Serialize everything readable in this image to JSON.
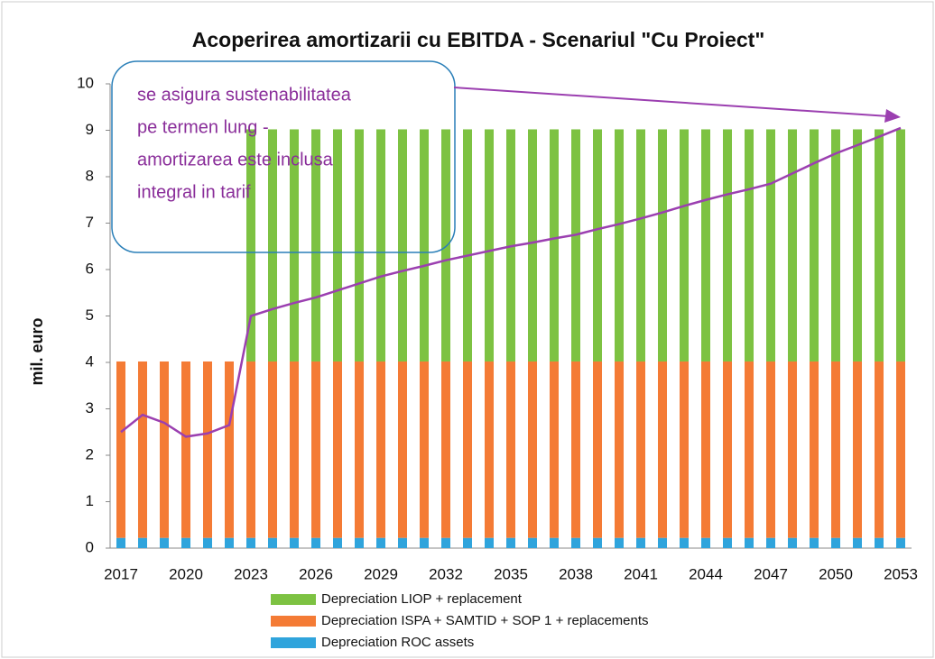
{
  "chart_data": {
    "type": "stacked_bar_line",
    "title": "Acoperirea amortizarii cu EBITDA - Scenariul \"Cu Proiect\"",
    "y_label": "mil. euro",
    "annotation": [
      "se asigura sustenabilitatea",
      "pe termen lung -",
      "amortizarea este inclusa",
      "integral in tarif"
    ],
    "categories": [
      "2017",
      null,
      null,
      "2020",
      null,
      null,
      "2023",
      null,
      null,
      "2026",
      null,
      null,
      "2029",
      null,
      null,
      "2032",
      null,
      null,
      "2035",
      null,
      null,
      "2038",
      null,
      null,
      "2041",
      null,
      null,
      "2044",
      null,
      null,
      "2047",
      null,
      null,
      "2050",
      null,
      null,
      "2053"
    ],
    "ylim": [
      0,
      10
    ],
    "yticks": [
      0,
      1,
      2,
      3,
      4,
      5,
      6,
      7,
      8,
      9,
      10
    ],
    "series": [
      {
        "name": "Depreciation ROC  assets",
        "color": "#2fa4dc",
        "values": [
          0.22,
          0.22,
          0.22,
          0.22,
          0.22,
          0.22,
          0.22,
          0.22,
          0.22,
          0.22,
          0.22,
          0.22,
          0.22,
          0.22,
          0.22,
          0.22,
          0.22,
          0.22,
          0.22,
          0.22,
          0.22,
          0.22,
          0.22,
          0.22,
          0.22,
          0.22,
          0.22,
          0.22,
          0.22,
          0.22,
          0.22,
          0.22,
          0.22,
          0.22,
          0.22,
          0.22,
          0.22
        ]
      },
      {
        "name": "Depreciation ISPA + SAMTID + SOP 1 + replacements",
        "color": "#f47b35",
        "values": [
          3.8,
          3.8,
          3.8,
          3.8,
          3.8,
          3.8,
          3.8,
          3.8,
          3.8,
          3.8,
          3.8,
          3.8,
          3.8,
          3.8,
          3.8,
          3.8,
          3.8,
          3.8,
          3.8,
          3.8,
          3.8,
          3.8,
          3.8,
          3.8,
          3.8,
          3.8,
          3.8,
          3.8,
          3.8,
          3.8,
          3.8,
          3.8,
          3.8,
          3.8,
          3.8,
          3.8,
          3.8
        ]
      },
      {
        "name": "Depreciation LIOP + replacement",
        "color": "#7dc242",
        "values": [
          0,
          0,
          0,
          0,
          0,
          0,
          5,
          5,
          5,
          5,
          5,
          5,
          5,
          5,
          5,
          5,
          5,
          5,
          5,
          5,
          5,
          5,
          5,
          5,
          5,
          5,
          5,
          5,
          5,
          5,
          5,
          5,
          5,
          5,
          5,
          5,
          5
        ]
      },
      {
        "type": "line",
        "color": "#9b3fb0",
        "values": [
          2.5,
          2.87,
          2.7,
          2.4,
          2.47,
          2.65,
          5.0,
          5.15,
          5.28,
          5.4,
          5.55,
          5.7,
          5.85,
          5.97,
          6.08,
          6.2,
          6.3,
          6.4,
          6.5,
          6.58,
          6.67,
          6.75,
          6.87,
          6.98,
          7.1,
          7.23,
          7.37,
          7.5,
          7.62,
          7.73,
          7.85,
          8.07,
          8.29,
          8.5,
          8.68,
          8.86,
          9.05
        ]
      }
    ]
  }
}
